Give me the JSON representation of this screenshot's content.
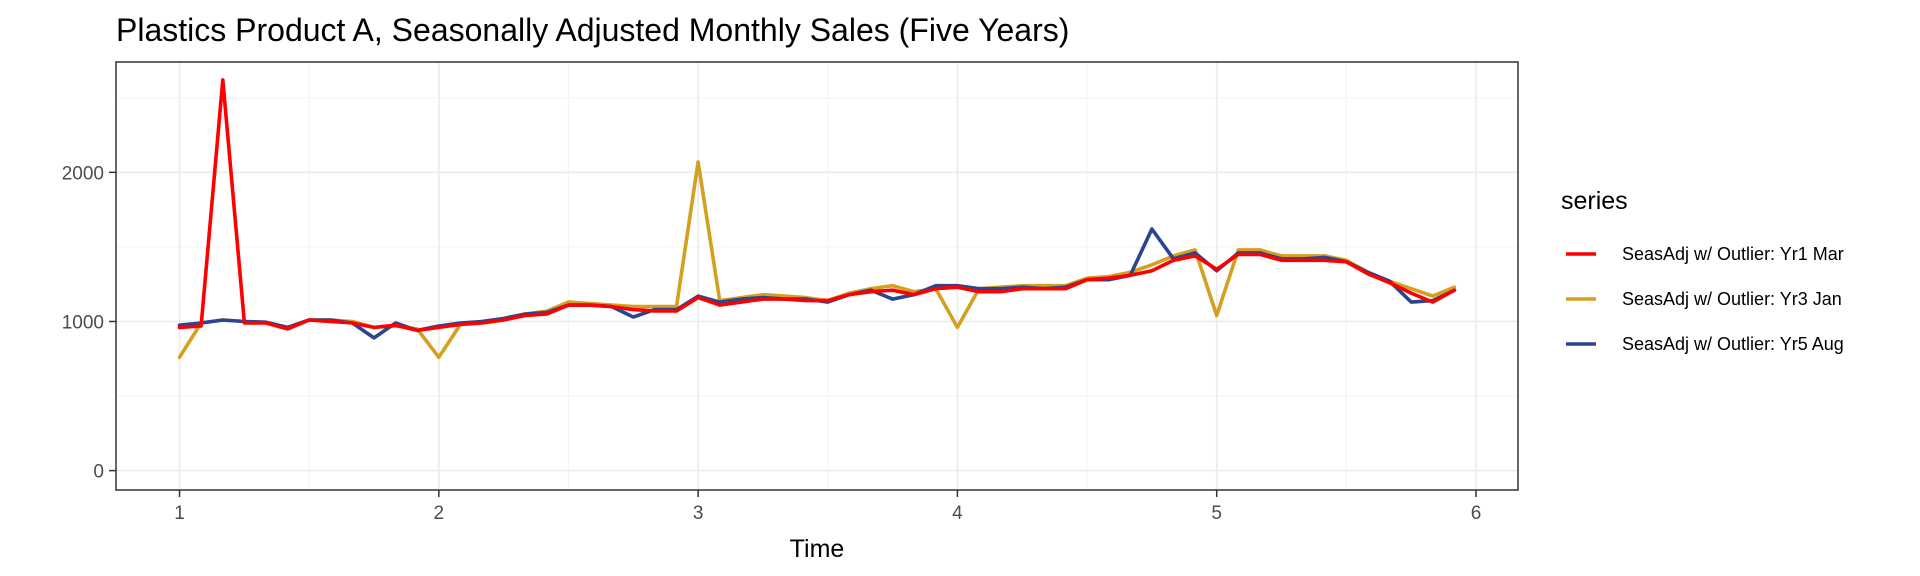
{
  "chart_data": {
    "type": "line",
    "title": "Plastics Product A, Seasonally Adjusted Monthly Sales (Five Years)",
    "xlabel": "Time",
    "ylabel": "",
    "xlim": [
      0.755,
      6.162
    ],
    "ylim": [
      -130,
      2740
    ],
    "x_ticks": [
      1,
      2,
      3,
      4,
      5,
      6
    ],
    "y_ticks": [
      0,
      1000,
      2000
    ],
    "grid": true,
    "legend": {
      "title": "series",
      "position": "right"
    },
    "x": [
      1.0,
      1.0833,
      1.1667,
      1.25,
      1.3333,
      1.4167,
      1.5,
      1.5833,
      1.6667,
      1.75,
      1.8333,
      1.9167,
      2.0,
      2.0833,
      2.1667,
      2.25,
      2.3333,
      2.4167,
      2.5,
      2.5833,
      2.6667,
      2.75,
      2.8333,
      2.9167,
      3.0,
      3.0833,
      3.1667,
      3.25,
      3.3333,
      3.4167,
      3.5,
      3.5833,
      3.6667,
      3.75,
      3.8333,
      3.9167,
      4.0,
      4.0833,
      4.1667,
      4.25,
      4.3333,
      4.4167,
      4.5,
      4.5833,
      4.6667,
      4.75,
      4.8333,
      4.9167,
      5.0,
      5.0833,
      5.1667,
      5.25,
      5.3333,
      5.4167,
      5.5,
      5.5833,
      5.6667,
      5.75,
      5.8333,
      5.9167
    ],
    "series": [
      {
        "name": "SeasAdj w/ Outlier: Yr3 Jan",
        "color": "#d4a020",
        "values": [
          760,
          990,
          1010,
          1000,
          990,
          960,
          1010,
          1010,
          1000,
          960,
          970,
          950,
          760,
          980,
          1000,
          1020,
          1050,
          1070,
          1130,
          1120,
          1110,
          1100,
          1100,
          1100,
          2070,
          1140,
          1160,
          1180,
          1170,
          1160,
          1140,
          1190,
          1220,
          1240,
          1200,
          1220,
          960,
          1220,
          1230,
          1240,
          1240,
          1240,
          1290,
          1300,
          1330,
          1380,
          1440,
          1480,
          1040,
          1480,
          1480,
          1440,
          1440,
          1440,
          1410,
          1330,
          1270,
          1220,
          1170,
          1230
        ]
      },
      {
        "name": "SeasAdj w/ Outlier: Yr5 Aug",
        "color": "#2b4590",
        "values": [
          975,
          990,
          1010,
          1000,
          995,
          960,
          1010,
          1010,
          990,
          890,
          990,
          940,
          970,
          990,
          1000,
          1020,
          1050,
          1060,
          1110,
          1110,
          1100,
          1030,
          1080,
          1080,
          1170,
          1130,
          1150,
          1160,
          1150,
          1150,
          1130,
          1180,
          1210,
          1150,
          1180,
          1240,
          1240,
          1220,
          1220,
          1230,
          1220,
          1230,
          1280,
          1280,
          1310,
          1620,
          1420,
          1460,
          1340,
          1460,
          1460,
          1420,
          1420,
          1430,
          1400,
          1330,
          1270,
          1130,
          1140,
          1210
        ]
      },
      {
        "name": "SeasAdj w/ Outlier: Yr1 Mar",
        "color": "#ff0000",
        "values": [
          960,
          970,
          2620,
          990,
          990,
          950,
          1010,
          1000,
          990,
          960,
          975,
          940,
          960,
          980,
          990,
          1010,
          1040,
          1050,
          1110,
          1110,
          1100,
          1080,
          1070,
          1070,
          1160,
          1110,
          1130,
          1150,
          1150,
          1140,
          1140,
          1180,
          1200,
          1210,
          1180,
          1220,
          1230,
          1200,
          1200,
          1220,
          1220,
          1220,
          1280,
          1290,
          1310,
          1340,
          1410,
          1440,
          1350,
          1450,
          1450,
          1410,
          1410,
          1410,
          1400,
          1320,
          1260,
          1190,
          1130,
          1210
        ]
      }
    ],
    "legend_order": [
      "SeasAdj w/ Outlier: Yr1 Mar",
      "SeasAdj w/ Outlier: Yr3 Jan",
      "SeasAdj w/ Outlier: Yr5 Aug"
    ],
    "colors": {
      "panel_background": "#ffffff",
      "grid_major": "#ebebeb",
      "grid_minor": "#f4f4f4",
      "panel_border": "#333333",
      "tick": "#333333"
    }
  }
}
